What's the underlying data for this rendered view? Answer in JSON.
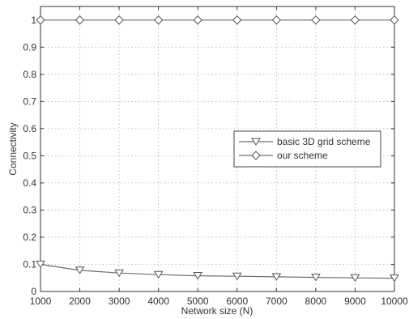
{
  "chart_data": {
    "type": "line",
    "title": "",
    "xlabel": "Network size (N)",
    "ylabel": "Connectivity",
    "x": [
      1000,
      2000,
      3000,
      4000,
      5000,
      6000,
      7000,
      8000,
      9000,
      10000
    ],
    "xlim": [
      1000,
      10000
    ],
    "ylim": [
      0,
      1.05
    ],
    "xticks": [
      1000,
      2000,
      3000,
      4000,
      5000,
      6000,
      7000,
      8000,
      9000,
      10000
    ],
    "yticks": [
      0,
      0.1,
      0.2,
      0.3,
      0.4,
      0.5,
      0.6,
      0.7,
      0.8,
      0.9,
      1
    ],
    "xtick_labels": [
      "1000",
      "2000",
      "3000",
      "4000",
      "5000",
      "6000",
      "7000",
      "8000",
      "9000",
      "10000"
    ],
    "ytick_labels": [
      "0",
      "0.1",
      "0.2",
      "0.3",
      "0.4",
      "0.5",
      "0.6",
      "0.7",
      "0.8",
      "0.9",
      "1"
    ],
    "grid": true,
    "legend_position": "center-right",
    "series": [
      {
        "name": "basic 3D grid scheme",
        "marker": "triangle-down",
        "values": [
          0.1,
          0.078,
          0.068,
          0.062,
          0.058,
          0.056,
          0.054,
          0.052,
          0.05,
          0.049
        ]
      },
      {
        "name": "our scheme",
        "marker": "diamond",
        "values": [
          1,
          1,
          1,
          1,
          1,
          1,
          1,
          1,
          1,
          1
        ]
      }
    ],
    "colors": {
      "line": "#6e6e6e",
      "marker": "#555555",
      "grid": "#b0b0b0",
      "axis": "#333333"
    }
  }
}
